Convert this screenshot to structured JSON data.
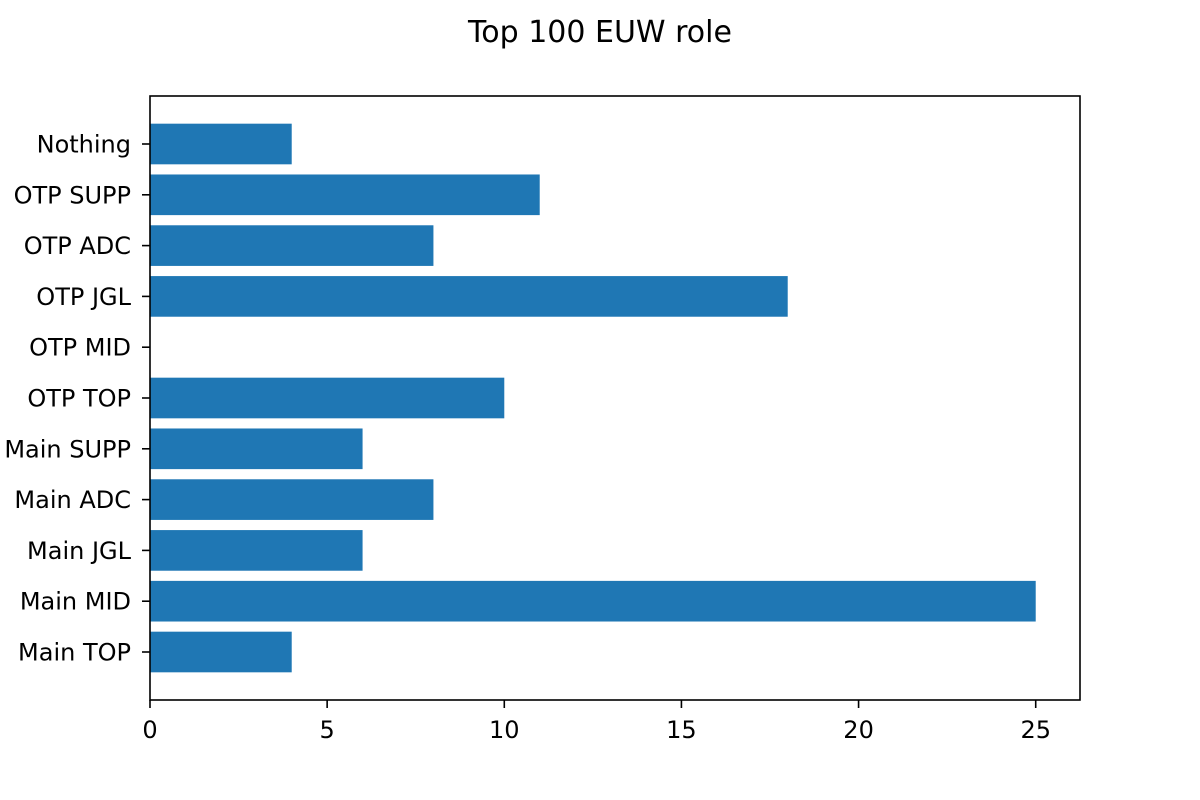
{
  "chart_data": {
    "type": "bar",
    "orientation": "horizontal",
    "title": "Top 100 EUW role",
    "xlabel": "",
    "ylabel": "",
    "categories": [
      "Main TOP",
      "Main MID",
      "Main JGL",
      "Main ADC",
      "Main SUPP",
      "OTP TOP",
      "OTP MID",
      "OTP JGL",
      "OTP ADC",
      "OTP SUPP",
      "Nothing"
    ],
    "values": [
      4,
      25,
      6,
      8,
      6,
      10,
      0,
      18,
      8,
      11,
      4
    ],
    "xlim": [
      0,
      26.25
    ],
    "xticks": [
      0,
      5,
      10,
      15,
      20,
      25
    ],
    "grid": false,
    "bar_color": "#1f77b4"
  }
}
